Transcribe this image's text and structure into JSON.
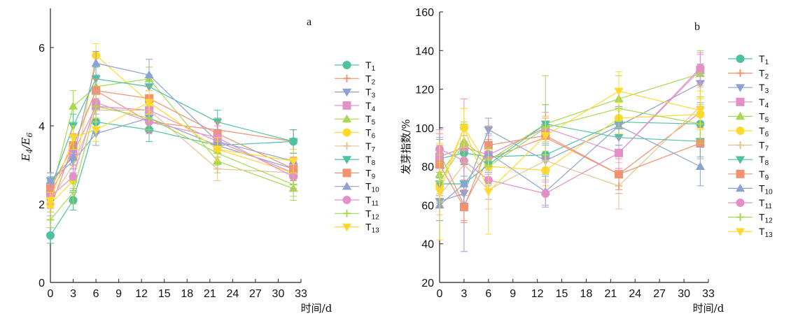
{
  "chart_data": [
    {
      "panel": "a",
      "type": "line",
      "title": "",
      "xlabel": "时间/d",
      "ylabel": "E4/E6",
      "ylabel_parts": [
        "E",
        "4",
        "/E",
        "6"
      ],
      "xlim": [
        0,
        33
      ],
      "ylim": [
        0,
        7
      ],
      "xticks": [
        0,
        3,
        6,
        9,
        12,
        15,
        18,
        21,
        24,
        27,
        30,
        33
      ],
      "yticks": [
        0,
        2,
        4,
        6
      ],
      "x": [
        0,
        3,
        6,
        13,
        22,
        32
      ],
      "error_bars": true,
      "legend_position": "right",
      "grid": false,
      "series": [
        {
          "name": "T1",
          "label": "T",
          "sub": "1",
          "marker": "circle",
          "color": "#4fc1a3",
          "values": [
            1.2,
            2.1,
            4.1,
            3.9,
            3.5,
            3.6
          ],
          "err": [
            0.2,
            0.25,
            0.3,
            0.3,
            0.3,
            0.3
          ]
        },
        {
          "name": "T2",
          "label": "T",
          "sub": "2",
          "marker": "plus",
          "color": "#f29270",
          "values": [
            1.9,
            3.5,
            4.9,
            4.1,
            3.9,
            3.6
          ],
          "err": [
            0.2,
            0.3,
            0.3,
            0.25,
            0.3,
            0.3
          ]
        },
        {
          "name": "T3",
          "label": "T",
          "sub": "3",
          "marker": "triangle-down",
          "color": "#8da2d0",
          "values": [
            2.6,
            3.1,
            3.8,
            4.2,
            3.5,
            2.9
          ],
          "err": [
            0.2,
            0.3,
            0.3,
            0.3,
            0.3,
            0.3
          ]
        },
        {
          "name": "T4",
          "label": "T",
          "sub": "4",
          "marker": "square",
          "color": "#e390c8",
          "values": [
            2.3,
            3.3,
            4.5,
            4.4,
            3.6,
            2.8
          ],
          "err": [
            0.2,
            0.3,
            0.3,
            0.3,
            0.3,
            0.3
          ]
        },
        {
          "name": "T5",
          "label": "T",
          "sub": "5",
          "marker": "triangle-up",
          "color": "#a6d854",
          "values": [
            2.2,
            4.5,
            5.0,
            5.2,
            3.1,
            2.4
          ],
          "err": [
            0.3,
            0.4,
            0.3,
            0.3,
            0.3,
            0.3
          ]
        },
        {
          "name": "T6",
          "label": "T",
          "sub": "6",
          "marker": "circle",
          "color": "#ffd92f",
          "values": [
            2.0,
            2.6,
            5.8,
            4.6,
            3.4,
            2.8
          ],
          "err": [
            0.2,
            0.3,
            0.3,
            0.3,
            0.3,
            0.3
          ]
        },
        {
          "name": "T7",
          "label": "T",
          "sub": "7",
          "marker": "plus",
          "color": "#e5c494",
          "values": [
            2.1,
            3.0,
            4.4,
            4.4,
            2.9,
            2.8
          ],
          "err": [
            0.2,
            0.3,
            0.3,
            0.3,
            0.3,
            0.3
          ]
        },
        {
          "name": "T8",
          "label": "T",
          "sub": "8",
          "marker": "triangle-down",
          "color": "#4fc1a3",
          "values": [
            2.4,
            4.0,
            5.2,
            5.0,
            4.1,
            3.6
          ],
          "err": [
            0.3,
            0.3,
            0.3,
            0.3,
            0.3,
            0.3
          ]
        },
        {
          "name": "T9",
          "label": "T",
          "sub": "9",
          "marker": "square",
          "color": "#f29270",
          "values": [
            2.4,
            3.5,
            4.9,
            4.7,
            3.8,
            2.9
          ],
          "err": [
            0.2,
            0.3,
            0.3,
            0.3,
            0.3,
            0.3
          ]
        },
        {
          "name": "T10",
          "label": "T",
          "sub": "10",
          "marker": "triangle-up",
          "color": "#8da2d0",
          "values": [
            2.6,
            3.2,
            5.6,
            5.3,
            3.6,
            3.1
          ],
          "err": [
            0.2,
            0.3,
            0.3,
            0.4,
            0.3,
            0.3
          ]
        },
        {
          "name": "T11",
          "label": "T",
          "sub": "11",
          "marker": "circle",
          "color": "#e390c8",
          "values": [
            2.2,
            2.7,
            4.6,
            4.1,
            3.7,
            2.7
          ],
          "err": [
            0.2,
            0.3,
            0.3,
            0.3,
            0.3,
            0.3
          ]
        },
        {
          "name": "T12",
          "label": "T",
          "sub": "12",
          "marker": "plus",
          "color": "#a6d854",
          "values": [
            1.6,
            2.3,
            4.5,
            4.2,
            3.3,
            2.5
          ],
          "err": [
            0.2,
            0.3,
            0.3,
            0.3,
            0.3,
            0.3
          ]
        },
        {
          "name": "T13",
          "label": "T",
          "sub": "13",
          "marker": "triangle-down",
          "color": "#ffd92f",
          "values": [
            2.1,
            3.7,
            3.9,
            4.6,
            3.4,
            3.1
          ],
          "err": [
            0.2,
            0.3,
            0.3,
            0.3,
            0.3,
            0.3
          ]
        }
      ]
    },
    {
      "panel": "b",
      "type": "line",
      "title": "",
      "xlabel": "时间/d",
      "ylabel": "发芽指数/%",
      "ylabel_parts": [
        "发芽指数/%"
      ],
      "xlim": [
        0,
        33
      ],
      "ylim": [
        20,
        160
      ],
      "xticks": [
        0,
        3,
        6,
        9,
        12,
        15,
        18,
        21,
        24,
        27,
        30,
        33
      ],
      "yticks": [
        20,
        40,
        60,
        80,
        100,
        120,
        140,
        160
      ],
      "x": [
        0,
        3,
        6,
        13,
        22,
        32
      ],
      "error_bars": true,
      "legend_position": "right",
      "grid": false,
      "series": [
        {
          "name": "T1",
          "label": "T",
          "sub": "1",
          "marker": "circle",
          "color": "#4fc1a3",
          "values": [
            84,
            87,
            85,
            86,
            103,
            102
          ],
          "err": [
            10,
            12,
            8,
            10,
            8,
            8
          ]
        },
        {
          "name": "T2",
          "label": "T",
          "sub": "2",
          "marker": "plus",
          "color": "#f29270",
          "values": [
            87,
            60,
            84,
            95,
            76,
            108
          ],
          "err": [
            10,
            8,
            10,
            10,
            10,
            8
          ]
        },
        {
          "name": "T3",
          "label": "T",
          "sub": "3",
          "marker": "triangle-down",
          "color": "#8da2d0",
          "values": [
            62,
            66,
            99,
            83,
            101,
            123
          ],
          "err": [
            10,
            30,
            6,
            8,
            10,
            10
          ]
        },
        {
          "name": "T4",
          "label": "T",
          "sub": "4",
          "marker": "square",
          "color": "#e390c8",
          "values": [
            85,
            90,
            86,
            100,
            87,
            130
          ],
          "err": [
            10,
            25,
            10,
            8,
            8,
            8
          ]
        },
        {
          "name": "T5",
          "label": "T",
          "sub": "5",
          "marker": "triangle-up",
          "color": "#a6d854",
          "values": [
            76,
            93,
            83,
            102,
            115,
            128
          ],
          "err": [
            10,
            10,
            10,
            25,
            12,
            12
          ]
        },
        {
          "name": "T6",
          "label": "T",
          "sub": "6",
          "marker": "circle",
          "color": "#ffd92f",
          "values": [
            70,
            100,
            80,
            78,
            105,
            107
          ],
          "err": [
            10,
            10,
            10,
            8,
            8,
            8
          ]
        },
        {
          "name": "T7",
          "label": "T",
          "sub": "7",
          "marker": "plus",
          "color": "#e5c494",
          "values": [
            65,
            81,
            68,
            83,
            70,
            111
          ],
          "err": [
            10,
            10,
            10,
            10,
            12,
            10
          ]
        },
        {
          "name": "T8",
          "label": "T",
          "sub": "8",
          "marker": "triangle-down",
          "color": "#4fc1a3",
          "values": [
            71,
            71,
            81,
            102,
            95,
            93
          ],
          "err": [
            10,
            10,
            10,
            10,
            8,
            8
          ]
        },
        {
          "name": "T9",
          "label": "T",
          "sub": "9",
          "marker": "square",
          "color": "#f29270",
          "values": [
            81,
            59,
            91,
            96,
            76,
            92
          ],
          "err": [
            10,
            8,
            10,
            10,
            8,
            8
          ]
        },
        {
          "name": "T10",
          "label": "T",
          "sub": "10",
          "marker": "triangle-up",
          "color": "#8da2d0",
          "values": [
            60,
            71,
            87,
            67,
            101,
            80
          ],
          "err": [
            8,
            10,
            10,
            8,
            10,
            10
          ]
        },
        {
          "name": "T11",
          "label": "T",
          "sub": "11",
          "marker": "circle",
          "color": "#e390c8",
          "values": [
            89,
            83,
            73,
            66,
            87,
            131
          ],
          "err": [
            10,
            10,
            10,
            6,
            8,
            8
          ]
        },
        {
          "name": "T12",
          "label": "T",
          "sub": "12",
          "marker": "plus",
          "color": "#a6d854",
          "values": [
            72,
            92,
            80,
            100,
            110,
            102
          ],
          "err": [
            10,
            10,
            10,
            12,
            10,
            10
          ]
        },
        {
          "name": "T13",
          "label": "T",
          "sub": "13",
          "marker": "triangle-down",
          "color": "#ffd92f",
          "values": [
            67,
            100,
            67,
            96,
            119,
            109
          ],
          "err": [
            25,
            10,
            22,
            10,
            10,
            10
          ]
        }
      ]
    }
  ],
  "panel_letters": [
    "a",
    "b"
  ]
}
